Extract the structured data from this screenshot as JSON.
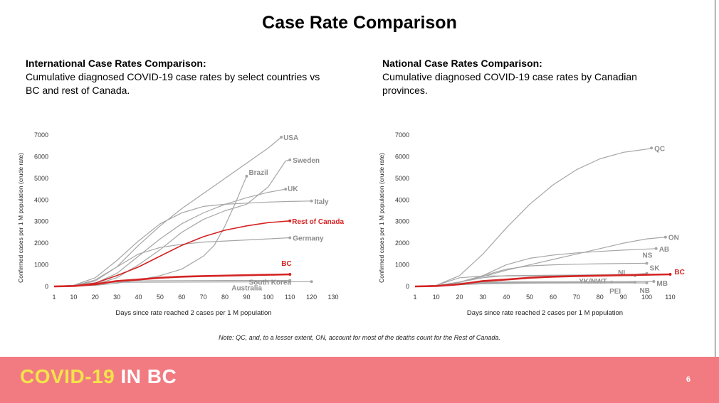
{
  "page": {
    "title": "Case Rate Comparison",
    "note": "Note: QC, and, to a lesser extent, ON, account for most of the deaths count for the Rest of Canada.",
    "brand_part1": "COVID-19",
    "brand_part2": "IN BC",
    "page_number": "6"
  },
  "colors": {
    "grey_line": "#a6a6a6",
    "highlight": "#d42323",
    "footer": "#f27b82",
    "brand_yellow": "#f3e34a"
  },
  "left_panel": {
    "heading": "International Case Rates Comparison:",
    "description": "Cumulative diagnosed COVID-19 case rates by select countries vs BC and rest of Canada."
  },
  "right_panel": {
    "heading": "National Case Rates Comparison:",
    "description": "Cumulative diagnosed COVID-19 case rates by Canadian provinces."
  },
  "chart_data": [
    {
      "type": "line",
      "xlabel": "Days since rate reached 2 cases per 1 M population",
      "ylabel": "Confirmed cases per 1 M population (crude rate)",
      "xticks": [
        1,
        10,
        20,
        30,
        40,
        50,
        60,
        70,
        80,
        90,
        100,
        110,
        120,
        130
      ],
      "xlim": [
        1,
        130
      ],
      "yticks": [
        0,
        1000,
        2000,
        3000,
        4000,
        5000,
        6000,
        7000
      ],
      "ylim": [
        0,
        7000
      ],
      "series": [
        {
          "name": "USA",
          "highlight": false,
          "points": [
            [
              1,
              0
            ],
            [
              10,
              30
            ],
            [
              20,
              250
            ],
            [
              30,
              900
            ],
            [
              40,
              1900
            ],
            [
              50,
              2800
            ],
            [
              60,
              3600
            ],
            [
              70,
              4300
            ],
            [
              80,
              5000
            ],
            [
              90,
              5700
            ],
            [
              100,
              6400
            ],
            [
              106,
              6900
            ]
          ]
        },
        {
          "name": "Sweden",
          "highlight": false,
          "points": [
            [
              1,
              0
            ],
            [
              10,
              20
            ],
            [
              20,
              100
            ],
            [
              30,
              400
            ],
            [
              40,
              1000
            ],
            [
              50,
              1700
            ],
            [
              60,
              2500
            ],
            [
              70,
              3100
            ],
            [
              80,
              3500
            ],
            [
              90,
              3800
            ],
            [
              100,
              4600
            ],
            [
              108,
              5800
            ],
            [
              110,
              5850
            ]
          ]
        },
        {
          "name": "Brazil",
          "highlight": false,
          "points": [
            [
              1,
              0
            ],
            [
              20,
              50
            ],
            [
              30,
              150
            ],
            [
              40,
              300
            ],
            [
              50,
              500
            ],
            [
              60,
              800
            ],
            [
              70,
              1400
            ],
            [
              75,
              1900
            ],
            [
              80,
              2800
            ],
            [
              85,
              3900
            ],
            [
              90,
              5100
            ]
          ]
        },
        {
          "name": "UK",
          "highlight": false,
          "points": [
            [
              1,
              0
            ],
            [
              10,
              20
            ],
            [
              20,
              150
            ],
            [
              30,
              600
            ],
            [
              40,
              1400
            ],
            [
              50,
              2200
            ],
            [
              60,
              2900
            ],
            [
              70,
              3400
            ],
            [
              80,
              3800
            ],
            [
              90,
              4100
            ],
            [
              100,
              4350
            ],
            [
              108,
              4500
            ]
          ]
        },
        {
          "name": "Italy",
          "highlight": false,
          "points": [
            [
              1,
              0
            ],
            [
              10,
              50
            ],
            [
              20,
              400
            ],
            [
              30,
              1200
            ],
            [
              40,
              2100
            ],
            [
              50,
              2900
            ],
            [
              60,
              3400
            ],
            [
              70,
              3700
            ],
            [
              80,
              3800
            ],
            [
              90,
              3850
            ],
            [
              100,
              3900
            ],
            [
              110,
              3930
            ],
            [
              120,
              3950
            ]
          ]
        },
        {
          "name": "Germany",
          "highlight": false,
          "points": [
            [
              1,
              0
            ],
            [
              10,
              30
            ],
            [
              20,
              300
            ],
            [
              30,
              900
            ],
            [
              40,
              1500
            ],
            [
              50,
              1800
            ],
            [
              60,
              1950
            ],
            [
              70,
              2050
            ],
            [
              80,
              2100
            ],
            [
              90,
              2150
            ],
            [
              100,
              2200
            ],
            [
              110,
              2250
            ]
          ]
        },
        {
          "name": "Australia",
          "highlight": false,
          "points": [
            [
              1,
              0
            ],
            [
              10,
              30
            ],
            [
              20,
              150
            ],
            [
              30,
              230
            ],
            [
              40,
              260
            ],
            [
              60,
              270
            ],
            [
              80,
              275
            ],
            [
              110,
              280
            ]
          ]
        },
        {
          "name": "South Korea",
          "highlight": false,
          "points": [
            [
              1,
              0
            ],
            [
              10,
              60
            ],
            [
              20,
              170
            ],
            [
              30,
              190
            ],
            [
              60,
              200
            ],
            [
              90,
              210
            ],
            [
              120,
              220
            ]
          ]
        },
        {
          "name": "Rest of Canada",
          "highlight": true,
          "points": [
            [
              1,
              0
            ],
            [
              10,
              20
            ],
            [
              20,
              150
            ],
            [
              30,
              500
            ],
            [
              40,
              900
            ],
            [
              50,
              1400
            ],
            [
              60,
              1900
            ],
            [
              70,
              2300
            ],
            [
              80,
              2600
            ],
            [
              90,
              2800
            ],
            [
              100,
              2950
            ],
            [
              110,
              3030
            ]
          ]
        },
        {
          "name": "BC",
          "highlight": true,
          "points": [
            [
              1,
              0
            ],
            [
              10,
              20
            ],
            [
              20,
              100
            ],
            [
              30,
              250
            ],
            [
              40,
              320
            ],
            [
              50,
              400
            ],
            [
              60,
              450
            ],
            [
              70,
              480
            ],
            [
              80,
              500
            ],
            [
              90,
              520
            ],
            [
              100,
              540
            ],
            [
              110,
              560
            ]
          ]
        }
      ]
    },
    {
      "type": "line",
      "xlabel": "Days since rate reached 2 cases per 1 M population",
      "ylabel": "Confirmed cases per 1 M population (crude rate)",
      "xticks": [
        1,
        10,
        20,
        30,
        40,
        50,
        60,
        70,
        80,
        90,
        100,
        110
      ],
      "xlim": [
        1,
        112
      ],
      "yticks": [
        0,
        1000,
        2000,
        3000,
        4000,
        5000,
        6000,
        7000
      ],
      "ylim": [
        0,
        7000
      ],
      "series": [
        {
          "name": "QC",
          "highlight": false,
          "points": [
            [
              1,
              0
            ],
            [
              10,
              50
            ],
            [
              20,
              500
            ],
            [
              30,
              1500
            ],
            [
              40,
              2700
            ],
            [
              50,
              3800
            ],
            [
              60,
              4700
            ],
            [
              70,
              5400
            ],
            [
              80,
              5900
            ],
            [
              90,
              6200
            ],
            [
              100,
              6350
            ],
            [
              102,
              6400
            ]
          ]
        },
        {
          "name": "ON",
          "highlight": false,
          "points": [
            [
              1,
              0
            ],
            [
              10,
              40
            ],
            [
              20,
              200
            ],
            [
              30,
              450
            ],
            [
              40,
              750
            ],
            [
              50,
              1000
            ],
            [
              60,
              1250
            ],
            [
              70,
              1500
            ],
            [
              80,
              1750
            ],
            [
              90,
              2000
            ],
            [
              100,
              2200
            ],
            [
              108,
              2280
            ]
          ]
        },
        {
          "name": "AB",
          "highlight": false,
          "points": [
            [
              1,
              0
            ],
            [
              10,
              30
            ],
            [
              20,
              200
            ],
            [
              30,
              500
            ],
            [
              40,
              1000
            ],
            [
              50,
              1300
            ],
            [
              60,
              1450
            ],
            [
              70,
              1550
            ],
            [
              80,
              1620
            ],
            [
              90,
              1680
            ],
            [
              104,
              1750
            ]
          ]
        },
        {
          "name": "NS",
          "highlight": false,
          "points": [
            [
              1,
              0
            ],
            [
              10,
              30
            ],
            [
              20,
              200
            ],
            [
              30,
              500
            ],
            [
              40,
              800
            ],
            [
              50,
              950
            ],
            [
              60,
              1000
            ],
            [
              70,
              1030
            ],
            [
              80,
              1050
            ],
            [
              90,
              1060
            ],
            [
              100,
              1070
            ]
          ]
        },
        {
          "name": "SK",
          "highlight": false,
          "points": [
            [
              1,
              0
            ],
            [
              10,
              30
            ],
            [
              20,
              200
            ],
            [
              30,
              400
            ],
            [
              40,
              500
            ],
            [
              60,
              520
            ],
            [
              80,
              540
            ],
            [
              95,
              560
            ],
            [
              100,
              600
            ]
          ]
        },
        {
          "name": "NL",
          "highlight": false,
          "points": [
            [
              1,
              0
            ],
            [
              10,
              50
            ],
            [
              20,
              400
            ],
            [
              30,
              480
            ],
            [
              50,
              490
            ],
            [
              70,
              500
            ],
            [
              95,
              500
            ]
          ]
        },
        {
          "name": "MB",
          "highlight": false,
          "points": [
            [
              1,
              0
            ],
            [
              10,
              20
            ],
            [
              20,
              150
            ],
            [
              30,
              200
            ],
            [
              50,
              215
            ],
            [
              70,
              220
            ],
            [
              90,
              225
            ],
            [
              103,
              230
            ]
          ]
        },
        {
          "name": "YK/NWT",
          "highlight": false,
          "points": [
            [
              1,
              0
            ],
            [
              10,
              20
            ],
            [
              20,
              150
            ],
            [
              30,
              170
            ],
            [
              50,
              180
            ],
            [
              70,
              190
            ],
            [
              85,
              200
            ]
          ]
        },
        {
          "name": "PEI",
          "highlight": false,
          "points": [
            [
              1,
              0
            ],
            [
              10,
              15
            ],
            [
              20,
              100
            ],
            [
              30,
              150
            ],
            [
              50,
              180
            ],
            [
              70,
              190
            ],
            [
              95,
              195
            ]
          ]
        },
        {
          "name": "NB",
          "highlight": false,
          "points": [
            [
              1,
              0
            ],
            [
              10,
              10
            ],
            [
              20,
              80
            ],
            [
              30,
              120
            ],
            [
              50,
              150
            ],
            [
              70,
              160
            ],
            [
              100,
              165
            ]
          ]
        },
        {
          "name": "BC",
          "highlight": true,
          "points": [
            [
              1,
              0
            ],
            [
              10,
              20
            ],
            [
              20,
              100
            ],
            [
              30,
              250
            ],
            [
              40,
              320
            ],
            [
              50,
              400
            ],
            [
              60,
              450
            ],
            [
              70,
              480
            ],
            [
              80,
              500
            ],
            [
              90,
              520
            ],
            [
              100,
              540
            ],
            [
              110,
              560
            ]
          ]
        }
      ]
    }
  ]
}
